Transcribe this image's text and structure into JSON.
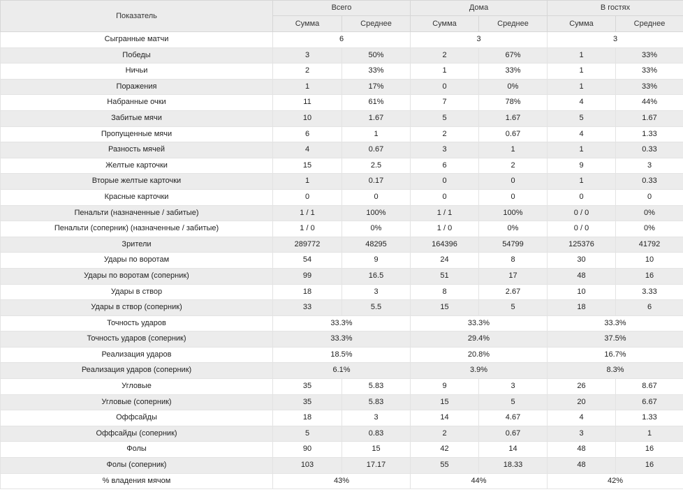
{
  "header": {
    "indicator": "Показатель",
    "groups": [
      "Всего",
      "Дома",
      "В гостях"
    ],
    "sub": [
      "Сумма",
      "Среднее"
    ]
  },
  "rows": [
    {
      "label": "Сыгранные матчи",
      "merged": true,
      "values": [
        "6",
        "3",
        "3"
      ]
    },
    {
      "label": "Победы",
      "merged": false,
      "values": [
        "3",
        "50%",
        "2",
        "67%",
        "1",
        "33%"
      ]
    },
    {
      "label": "Ничьи",
      "merged": false,
      "values": [
        "2",
        "33%",
        "1",
        "33%",
        "1",
        "33%"
      ]
    },
    {
      "label": "Поражения",
      "merged": false,
      "values": [
        "1",
        "17%",
        "0",
        "0%",
        "1",
        "33%"
      ]
    },
    {
      "label": "Набранные очки",
      "merged": false,
      "values": [
        "11",
        "61%",
        "7",
        "78%",
        "4",
        "44%"
      ]
    },
    {
      "label": "Забитые мячи",
      "merged": false,
      "values": [
        "10",
        "1.67",
        "5",
        "1.67",
        "5",
        "1.67"
      ]
    },
    {
      "label": "Пропущенные мячи",
      "merged": false,
      "values": [
        "6",
        "1",
        "2",
        "0.67",
        "4",
        "1.33"
      ]
    },
    {
      "label": "Разность мячей",
      "merged": false,
      "values": [
        "4",
        "0.67",
        "3",
        "1",
        "1",
        "0.33"
      ]
    },
    {
      "label": "Желтые карточки",
      "merged": false,
      "values": [
        "15",
        "2.5",
        "6",
        "2",
        "9",
        "3"
      ]
    },
    {
      "label": "Вторые желтые карточки",
      "merged": false,
      "values": [
        "1",
        "0.17",
        "0",
        "0",
        "1",
        "0.33"
      ]
    },
    {
      "label": "Красные карточки",
      "merged": false,
      "values": [
        "0",
        "0",
        "0",
        "0",
        "0",
        "0"
      ]
    },
    {
      "label": "Пенальти (назначенные / забитые)",
      "merged": false,
      "values": [
        "1 / 1",
        "100%",
        "1 / 1",
        "100%",
        "0 / 0",
        "0%"
      ]
    },
    {
      "label": "Пенальти (соперник) (назначенные / забитые)",
      "merged": false,
      "values": [
        "1 / 0",
        "0%",
        "1 / 0",
        "0%",
        "0 / 0",
        "0%"
      ]
    },
    {
      "label": "Зрители",
      "merged": false,
      "values": [
        "289772",
        "48295",
        "164396",
        "54799",
        "125376",
        "41792"
      ]
    },
    {
      "label": "Удары по воротам",
      "merged": false,
      "values": [
        "54",
        "9",
        "24",
        "8",
        "30",
        "10"
      ]
    },
    {
      "label": "Удары по воротам (соперник)",
      "merged": false,
      "values": [
        "99",
        "16.5",
        "51",
        "17",
        "48",
        "16"
      ]
    },
    {
      "label": "Удары в створ",
      "merged": false,
      "values": [
        "18",
        "3",
        "8",
        "2.67",
        "10",
        "3.33"
      ]
    },
    {
      "label": "Удары в створ (соперник)",
      "merged": false,
      "values": [
        "33",
        "5.5",
        "15",
        "5",
        "18",
        "6"
      ]
    },
    {
      "label": "Точность ударов",
      "merged": true,
      "values": [
        "33.3%",
        "33.3%",
        "33.3%"
      ]
    },
    {
      "label": "Точность ударов (соперник)",
      "merged": true,
      "values": [
        "33.3%",
        "29.4%",
        "37.5%"
      ]
    },
    {
      "label": "Реализация ударов",
      "merged": true,
      "values": [
        "18.5%",
        "20.8%",
        "16.7%"
      ]
    },
    {
      "label": "Реализация ударов (соперник)",
      "merged": true,
      "values": [
        "6.1%",
        "3.9%",
        "8.3%"
      ]
    },
    {
      "label": "Угловые",
      "merged": false,
      "values": [
        "35",
        "5.83",
        "9",
        "3",
        "26",
        "8.67"
      ]
    },
    {
      "label": "Угловые (соперник)",
      "merged": false,
      "values": [
        "35",
        "5.83",
        "15",
        "5",
        "20",
        "6.67"
      ]
    },
    {
      "label": "Оффсайды",
      "merged": false,
      "values": [
        "18",
        "3",
        "14",
        "4.67",
        "4",
        "1.33"
      ]
    },
    {
      "label": "Оффсайды (соперник)",
      "merged": false,
      "values": [
        "5",
        "0.83",
        "2",
        "0.67",
        "3",
        "1"
      ]
    },
    {
      "label": "Фолы",
      "merged": false,
      "values": [
        "90",
        "15",
        "42",
        "14",
        "48",
        "16"
      ]
    },
    {
      "label": "Фолы (соперник)",
      "merged": false,
      "values": [
        "103",
        "17.17",
        "55",
        "18.33",
        "48",
        "16"
      ]
    },
    {
      "label": "% владения мячом",
      "merged": true,
      "values": [
        "43%",
        "44%",
        "42%"
      ]
    }
  ]
}
